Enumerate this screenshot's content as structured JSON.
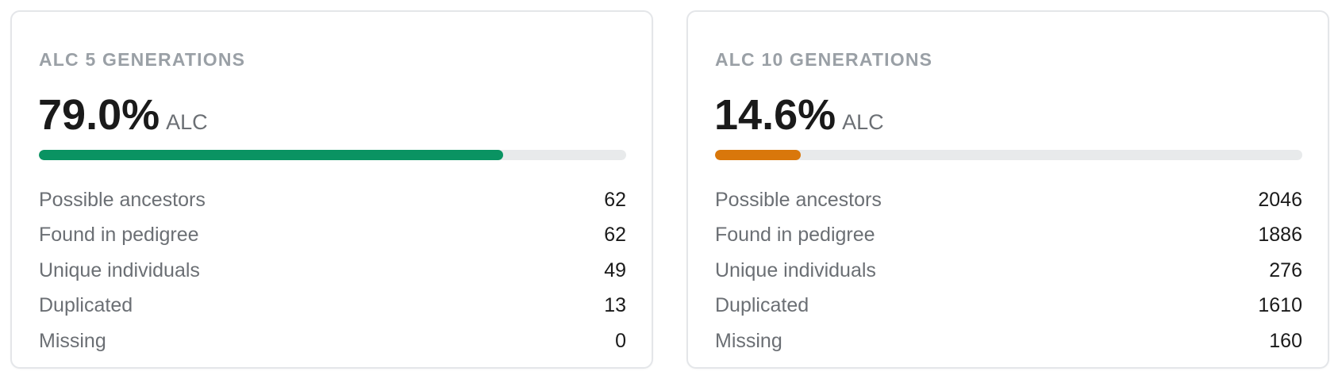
{
  "cards": [
    {
      "title": "ALC 5 GENERATIONS",
      "percent": "79.0%",
      "unit": "ALC",
      "progress": 0.79,
      "bar_color": "#0a9362",
      "rows": [
        {
          "label": "Possible ancestors",
          "value": "62"
        },
        {
          "label": "Found in pedigree",
          "value": "62"
        },
        {
          "label": "Unique individuals",
          "value": "49"
        },
        {
          "label": "Duplicated",
          "value": "13"
        },
        {
          "label": "Missing",
          "value": "0"
        }
      ]
    },
    {
      "title": "ALC 10 GENERATIONS",
      "percent": "14.6%",
      "unit": "ALC",
      "progress": 0.146,
      "bar_color": "#d9770b",
      "rows": [
        {
          "label": "Possible ancestors",
          "value": "2046"
        },
        {
          "label": "Found in pedigree",
          "value": "1886"
        },
        {
          "label": "Unique individuals",
          "value": "276"
        },
        {
          "label": "Duplicated",
          "value": "1610"
        },
        {
          "label": "Missing",
          "value": "160"
        }
      ]
    }
  ]
}
